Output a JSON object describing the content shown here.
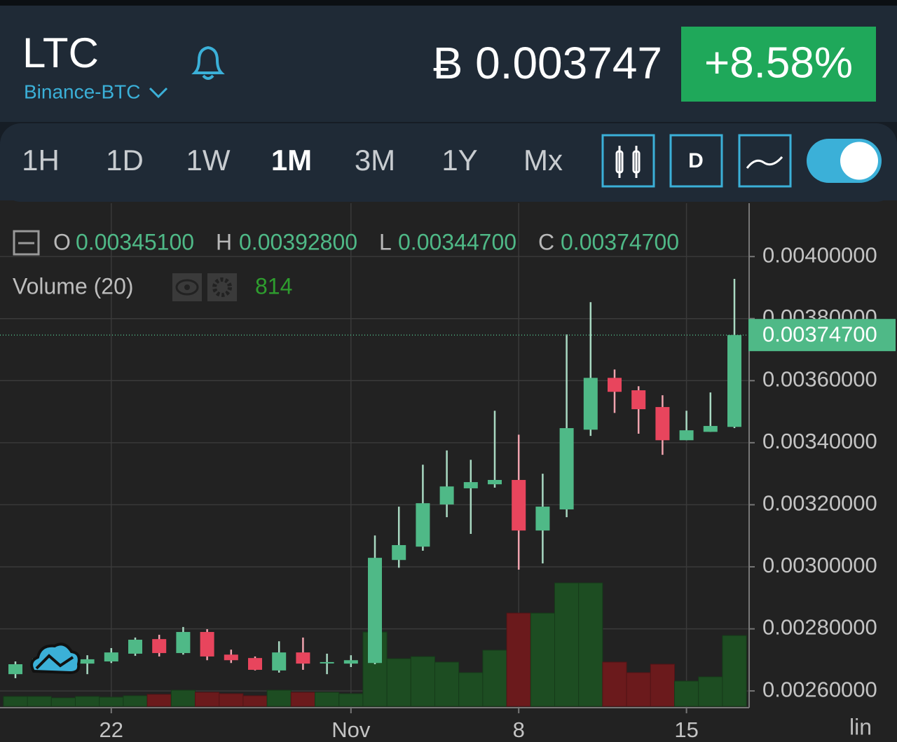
{
  "header": {
    "symbol": "LTC",
    "exchange": "Binance-BTC",
    "price": "Ƀ 0.003747",
    "change": "+8.58%"
  },
  "toolbar": {
    "intervals": [
      "1H",
      "1D",
      "1W",
      "1M",
      "3M",
      "1Y",
      "Mx"
    ],
    "active": "1M",
    "interval_button": "D"
  },
  "legend": {
    "o_label": "O",
    "o": "0.00345100",
    "h_label": "H",
    "h": "0.00392800",
    "l_label": "L",
    "l": "0.00344700",
    "c_label": "C",
    "c": "0.00374700",
    "volume_label": "Volume (20)"
  },
  "scale_mode": "lin",
  "chart_data": {
    "type": "candlestick",
    "categories": [
      null,
      null,
      null,
      null,
      "22",
      null,
      null,
      null,
      null,
      null,
      null,
      null,
      null,
      null,
      "Nov",
      null,
      null,
      null,
      null,
      null,
      null,
      "8",
      null,
      null,
      null,
      null,
      null,
      null,
      "15",
      null,
      null
    ],
    "open": [
      0.002654,
      0.002681,
      0.002693,
      0.002688,
      0.002695,
      0.00272,
      0.002767,
      0.002722,
      0.00279,
      0.002717,
      0.002706,
      0.002666,
      0.002724,
      0.00269,
      0.002688,
      0.00269,
      0.003022,
      0.003065,
      0.003201,
      0.003253,
      0.003266,
      0.00328,
      0.003117,
      0.003185,
      0.003442,
      0.003609,
      0.003569,
      0.003515,
      0.003408,
      0.003435,
      0.003451
    ],
    "high": [
      0.002695,
      0.002715,
      0.002727,
      0.002715,
      0.002738,
      0.002772,
      0.002781,
      0.002806,
      0.002799,
      0.002733,
      0.002711,
      0.00276,
      0.002772,
      0.00272,
      0.002715,
      0.003101,
      0.003194,
      0.003329,
      0.003375,
      0.003345,
      0.003503,
      0.003426,
      0.0033,
      0.003749,
      0.003853,
      0.003636,
      0.003582,
      0.003553,
      0.003503,
      0.003562,
      0.003928
    ],
    "low": [
      0.002641,
      0.00267,
      0.002677,
      0.002654,
      0.00269,
      0.002713,
      0.002711,
      0.002717,
      0.002699,
      0.00269,
      0.002666,
      0.002659,
      0.002668,
      0.002654,
      0.002677,
      0.002686,
      0.002997,
      0.003052,
      0.00316,
      0.003106,
      0.003255,
      0.002991,
      0.003011,
      0.00316,
      0.003422,
      0.003496,
      0.003429,
      0.003361,
      0.003408,
      0.003435,
      0.003447
    ],
    "close": [
      0.002686,
      0.002704,
      0.002699,
      0.002702,
      0.002724,
      0.002765,
      0.002722,
      0.00279,
      0.002711,
      0.002699,
      0.002668,
      0.002724,
      0.002688,
      0.002693,
      0.002699,
      0.003029,
      0.00307,
      0.003205,
      0.003259,
      0.003273,
      0.00328,
      0.003117,
      0.003194,
      0.003447,
      0.003609,
      0.003564,
      0.003508,
      0.003408,
      0.00344,
      0.003454,
      0.003747
    ],
    "volume": [
      113,
      113,
      97,
      113,
      105,
      121,
      137,
      185,
      161,
      145,
      121,
      185,
      161,
      161,
      145,
      854,
      548,
      572,
      508,
      387,
      645,
      1072,
      1072,
      1419,
      1419,
      508,
      387,
      484,
      290,
      339,
      814
    ],
    "up_color": "#4fb987",
    "down_color": "#e8455d",
    "volume_up_color": "#1d4d22",
    "volume_down_color": "#6b1a1c",
    "ylim": [
      0.002546,
      0.004172
    ],
    "yticks": [
      {
        "value": 0.0026,
        "label": "0.00260000"
      },
      {
        "value": 0.0028,
        "label": "0.00280000"
      },
      {
        "value": 0.003,
        "label": "0.00300000"
      },
      {
        "value": 0.0032,
        "label": "0.00320000"
      },
      {
        "value": 0.0034,
        "label": "0.00340000"
      },
      {
        "value": 0.0036,
        "label": "0.00360000"
      },
      {
        "value": 0.0038,
        "label": "0.00380000"
      },
      {
        "value": 0.004,
        "label": "0.00400000"
      }
    ],
    "last_price": {
      "value": 0.003747,
      "label": "0.00374700"
    },
    "grid": true
  }
}
